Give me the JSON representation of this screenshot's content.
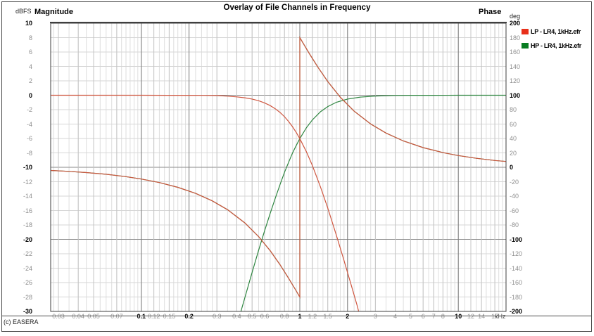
{
  "header": {
    "magnitude_title": "Magnitude",
    "magnitude_unit": "dBFS",
    "phase_title": "Phase",
    "phase_unit": "deg"
  },
  "footer": {
    "copyright": "(c) EASERA"
  },
  "chart_data": {
    "type": "line",
    "title": "Overlay of File Channels in Frequency",
    "x_axis": {
      "scale": "log",
      "unit": "kHz",
      "min": 0.0268,
      "max": 20,
      "ticks": [
        {
          "f": 0.03,
          "label": "0.03",
          "major": false
        },
        {
          "f": 0.04,
          "label": "0.04",
          "major": false
        },
        {
          "f": 0.05,
          "label": "0.05",
          "major": false
        },
        {
          "f": 0.07,
          "label": "0.07",
          "major": false
        },
        {
          "f": 0.1,
          "label": "0.1",
          "major": true
        },
        {
          "f": 0.12,
          "label": "0.12",
          "major": false
        },
        {
          "f": 0.15,
          "label": "0.15",
          "major": false
        },
        {
          "f": 0.2,
          "label": "0.2",
          "major": true
        },
        {
          "f": 0.3,
          "label": "0.3",
          "major": false
        },
        {
          "f": 0.4,
          "label": "0.4",
          "major": false
        },
        {
          "f": 0.5,
          "label": "0.5",
          "major": false
        },
        {
          "f": 0.6,
          "label": "0.6",
          "major": false
        },
        {
          "f": 0.8,
          "label": "0.8",
          "major": false
        },
        {
          "f": 1,
          "label": "1",
          "major": true
        },
        {
          "f": 1.2,
          "label": "1.2",
          "major": false
        },
        {
          "f": 1.5,
          "label": "1.5",
          "major": false
        },
        {
          "f": 2,
          "label": "2",
          "major": true
        },
        {
          "f": 3,
          "label": "3",
          "major": false
        },
        {
          "f": 4,
          "label": "4",
          "major": false
        },
        {
          "f": 5,
          "label": "5",
          "major": false
        },
        {
          "f": 6,
          "label": "6",
          "major": false
        },
        {
          "f": 7,
          "label": "7",
          "major": false
        },
        {
          "f": 8,
          "label": "8",
          "major": false
        },
        {
          "f": 10,
          "label": "10",
          "major": true
        },
        {
          "f": 12,
          "label": "12",
          "major": false
        },
        {
          "f": 14,
          "label": "14",
          "major": false
        },
        {
          "f": 17,
          "label": "17",
          "major": false
        }
      ],
      "minor_multipliers": [
        1,
        1.1,
        1.2,
        1.3,
        1.4,
        1.5,
        1.6,
        1.7,
        1.8,
        1.9,
        2,
        2.2,
        2.4,
        2.6,
        2.8,
        3,
        3.5,
        4,
        4.5,
        5,
        5.5,
        6,
        6.5,
        7,
        7.5,
        8,
        8.5,
        9,
        9.5
      ]
    },
    "y_left": {
      "title": "Magnitude",
      "unit": "dBFS",
      "min": -30,
      "max": 10,
      "step": 2,
      "major_every": 10
    },
    "y_right": {
      "title": "Phase",
      "unit": "deg",
      "min": -200,
      "max": 200,
      "step": 20,
      "major_every": 100
    },
    "legend": [
      {
        "label": "LP - LR4, 1kHz.efr",
        "color": "#e8301a"
      },
      {
        "label": "HP - LR4, 1kHz.efr",
        "color": "#087d22"
      }
    ],
    "series": [
      {
        "name": "LP magnitude",
        "axis": "left",
        "color": "#cf5740",
        "points": [
          [
            0.0268,
            0
          ],
          [
            0.06,
            0
          ],
          [
            0.1,
            0
          ],
          [
            0.15,
            -0.01
          ],
          [
            0.2,
            -0.01
          ],
          [
            0.25,
            -0.02
          ],
          [
            0.3,
            -0.04
          ],
          [
            0.35,
            -0.13
          ],
          [
            0.4,
            -0.22
          ],
          [
            0.45,
            -0.35
          ],
          [
            0.5,
            -0.53
          ],
          [
            0.55,
            -0.76
          ],
          [
            0.6,
            -1.06
          ],
          [
            0.65,
            -1.43
          ],
          [
            0.7,
            -1.87
          ],
          [
            0.75,
            -2.39
          ],
          [
            0.8,
            -2.98
          ],
          [
            0.85,
            -3.65
          ],
          [
            0.9,
            -4.38
          ],
          [
            0.95,
            -5.18
          ],
          [
            1,
            -6.02
          ],
          [
            1.1,
            -7.83
          ],
          [
            1.2,
            -9.75
          ],
          [
            1.35,
            -12.71
          ],
          [
            1.5,
            -15.65
          ],
          [
            1.7,
            -19.42
          ],
          [
            1.9,
            -22.94
          ],
          [
            2.1,
            -26.2
          ],
          [
            2.3,
            -29.2
          ],
          [
            2.45,
            -31.5
          ]
        ]
      },
      {
        "name": "HP magnitude",
        "axis": "left",
        "color": "#2e8540",
        "points": [
          [
            0.41,
            -31.2
          ],
          [
            0.45,
            -28.1
          ],
          [
            0.5,
            -24.6
          ],
          [
            0.55,
            -21.5
          ],
          [
            0.6,
            -18.8
          ],
          [
            0.65,
            -16.4
          ],
          [
            0.7,
            -14.3
          ],
          [
            0.75,
            -12.4
          ],
          [
            0.8,
            -10.7
          ],
          [
            0.85,
            -9.3
          ],
          [
            0.9,
            -8.0
          ],
          [
            0.95,
            -6.96
          ],
          [
            1,
            -6.02
          ],
          [
            1.1,
            -4.52
          ],
          [
            1.2,
            -3.42
          ],
          [
            1.35,
            -2.29
          ],
          [
            1.5,
            -1.57
          ],
          [
            1.7,
            -0.98
          ],
          [
            2,
            -0.53
          ],
          [
            2.4,
            -0.26
          ],
          [
            3,
            -0.11
          ],
          [
            4,
            -0.03
          ],
          [
            5,
            -0.01
          ],
          [
            7,
            -0.005
          ],
          [
            10,
            -0.002
          ],
          [
            20,
            0
          ]
        ]
      },
      {
        "name": "HP phase",
        "axis": "right",
        "color": "#2e8540",
        "points": [
          [
            0.0268,
            -4.4
          ],
          [
            0.035,
            -5.7
          ],
          [
            0.045,
            -7.3
          ],
          [
            0.06,
            -9.7
          ],
          [
            0.08,
            -13.0
          ],
          [
            0.1,
            -16.3
          ],
          [
            0.13,
            -21.2
          ],
          [
            0.17,
            -27.8
          ],
          [
            0.22,
            -36.2
          ],
          [
            0.28,
            -46.5
          ],
          [
            0.35,
            -58.8
          ],
          [
            0.45,
            -77.2
          ],
          [
            0.55,
            -96.2
          ],
          [
            0.65,
            -115.7
          ],
          [
            0.75,
            -135.2
          ],
          [
            0.85,
            -154.0
          ],
          [
            0.95,
            -171.7
          ],
          [
            1,
            -180
          ],
          [
            1,
            180
          ],
          [
            1.05,
            172.1
          ],
          [
            1.15,
            157.6
          ],
          [
            1.3,
            138.9
          ],
          [
            1.5,
            119.0
          ],
          [
            1.8,
            97.3
          ],
          [
            2.2,
            78.0
          ],
          [
            2.8,
            60.1
          ],
          [
            3.5,
            47.5
          ],
          [
            4.5,
            36.6
          ],
          [
            6,
            27.3
          ],
          [
            8,
            20.4
          ],
          [
            10,
            16.3
          ],
          [
            13,
            12.5
          ],
          [
            17,
            9.5
          ],
          [
            20,
            8.1
          ]
        ]
      },
      {
        "name": "LP phase",
        "axis": "right",
        "color": "#cf5740",
        "points": [
          [
            0.0268,
            -4.4
          ],
          [
            0.035,
            -5.7
          ],
          [
            0.045,
            -7.3
          ],
          [
            0.06,
            -9.7
          ],
          [
            0.08,
            -13.0
          ],
          [
            0.1,
            -16.3
          ],
          [
            0.13,
            -21.2
          ],
          [
            0.17,
            -27.8
          ],
          [
            0.22,
            -36.2
          ],
          [
            0.28,
            -46.5
          ],
          [
            0.35,
            -58.8
          ],
          [
            0.45,
            -77.2
          ],
          [
            0.55,
            -96.2
          ],
          [
            0.65,
            -115.7
          ],
          [
            0.75,
            -135.2
          ],
          [
            0.85,
            -154.0
          ],
          [
            0.95,
            -171.7
          ],
          [
            1,
            -180
          ],
          [
            1,
            180
          ],
          [
            1.05,
            172.1
          ],
          [
            1.15,
            157.6
          ],
          [
            1.3,
            138.9
          ],
          [
            1.5,
            119.0
          ],
          [
            1.8,
            97.3
          ],
          [
            2.2,
            78.0
          ],
          [
            2.8,
            60.1
          ],
          [
            3.5,
            47.5
          ],
          [
            4.5,
            36.6
          ],
          [
            6,
            27.3
          ],
          [
            8,
            20.4
          ],
          [
            10,
            16.3
          ],
          [
            13,
            12.5
          ],
          [
            17,
            9.5
          ],
          [
            20,
            8.1
          ]
        ]
      }
    ]
  }
}
